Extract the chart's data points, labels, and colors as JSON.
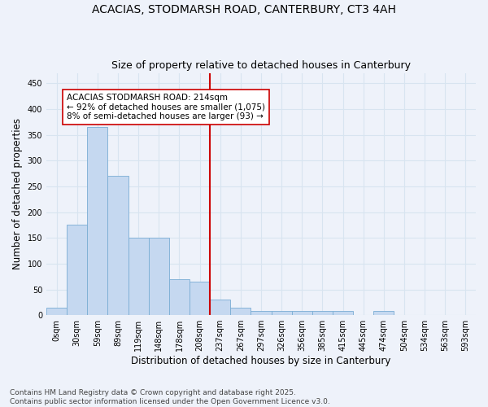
{
  "title_line1": "ACACIAS, STODMARSH ROAD, CANTERBURY, CT3 4AH",
  "title_line2": "Size of property relative to detached houses in Canterbury",
  "xlabel": "Distribution of detached houses by size in Canterbury",
  "ylabel": "Number of detached properties",
  "bar_color": "#c5d8f0",
  "bar_edge_color": "#7aadd4",
  "vline_color": "#cc0000",
  "vline_x": 7.5,
  "annotation_text": "ACACIAS STODMARSH ROAD: 214sqm\n← 92% of detached houses are smaller (1,075)\n8% of semi-detached houses are larger (93) →",
  "annotation_box_color": "#ffffff",
  "annotation_box_edge": "#cc0000",
  "cat_labels": [
    "0sqm",
    "30sqm",
    "59sqm",
    "89sqm",
    "119sqm",
    "148sqm",
    "178sqm",
    "208sqm",
    "237sqm",
    "267sqm",
    "297sqm",
    "326sqm",
    "356sqm",
    "385sqm",
    "415sqm",
    "445sqm",
    "474sqm",
    "504sqm",
    "534sqm",
    "563sqm",
    "593sqm"
  ],
  "values": [
    15,
    175,
    365,
    270,
    150,
    150,
    70,
    65,
    30,
    15,
    8,
    8,
    8,
    8,
    8,
    0,
    8,
    0,
    0,
    0,
    0
  ],
  "ylim": [
    0,
    470
  ],
  "yticks": [
    0,
    50,
    100,
    150,
    200,
    250,
    300,
    350,
    400,
    450
  ],
  "background_color": "#eef2fa",
  "footer_text": "Contains HM Land Registry data © Crown copyright and database right 2025.\nContains public sector information licensed under the Open Government Licence v3.0.",
  "grid_color": "#d8e4f0",
  "title_fontsize": 10,
  "subtitle_fontsize": 9,
  "axis_label_fontsize": 8.5,
  "tick_fontsize": 7,
  "footer_fontsize": 6.5,
  "annot_fontsize": 7.5
}
